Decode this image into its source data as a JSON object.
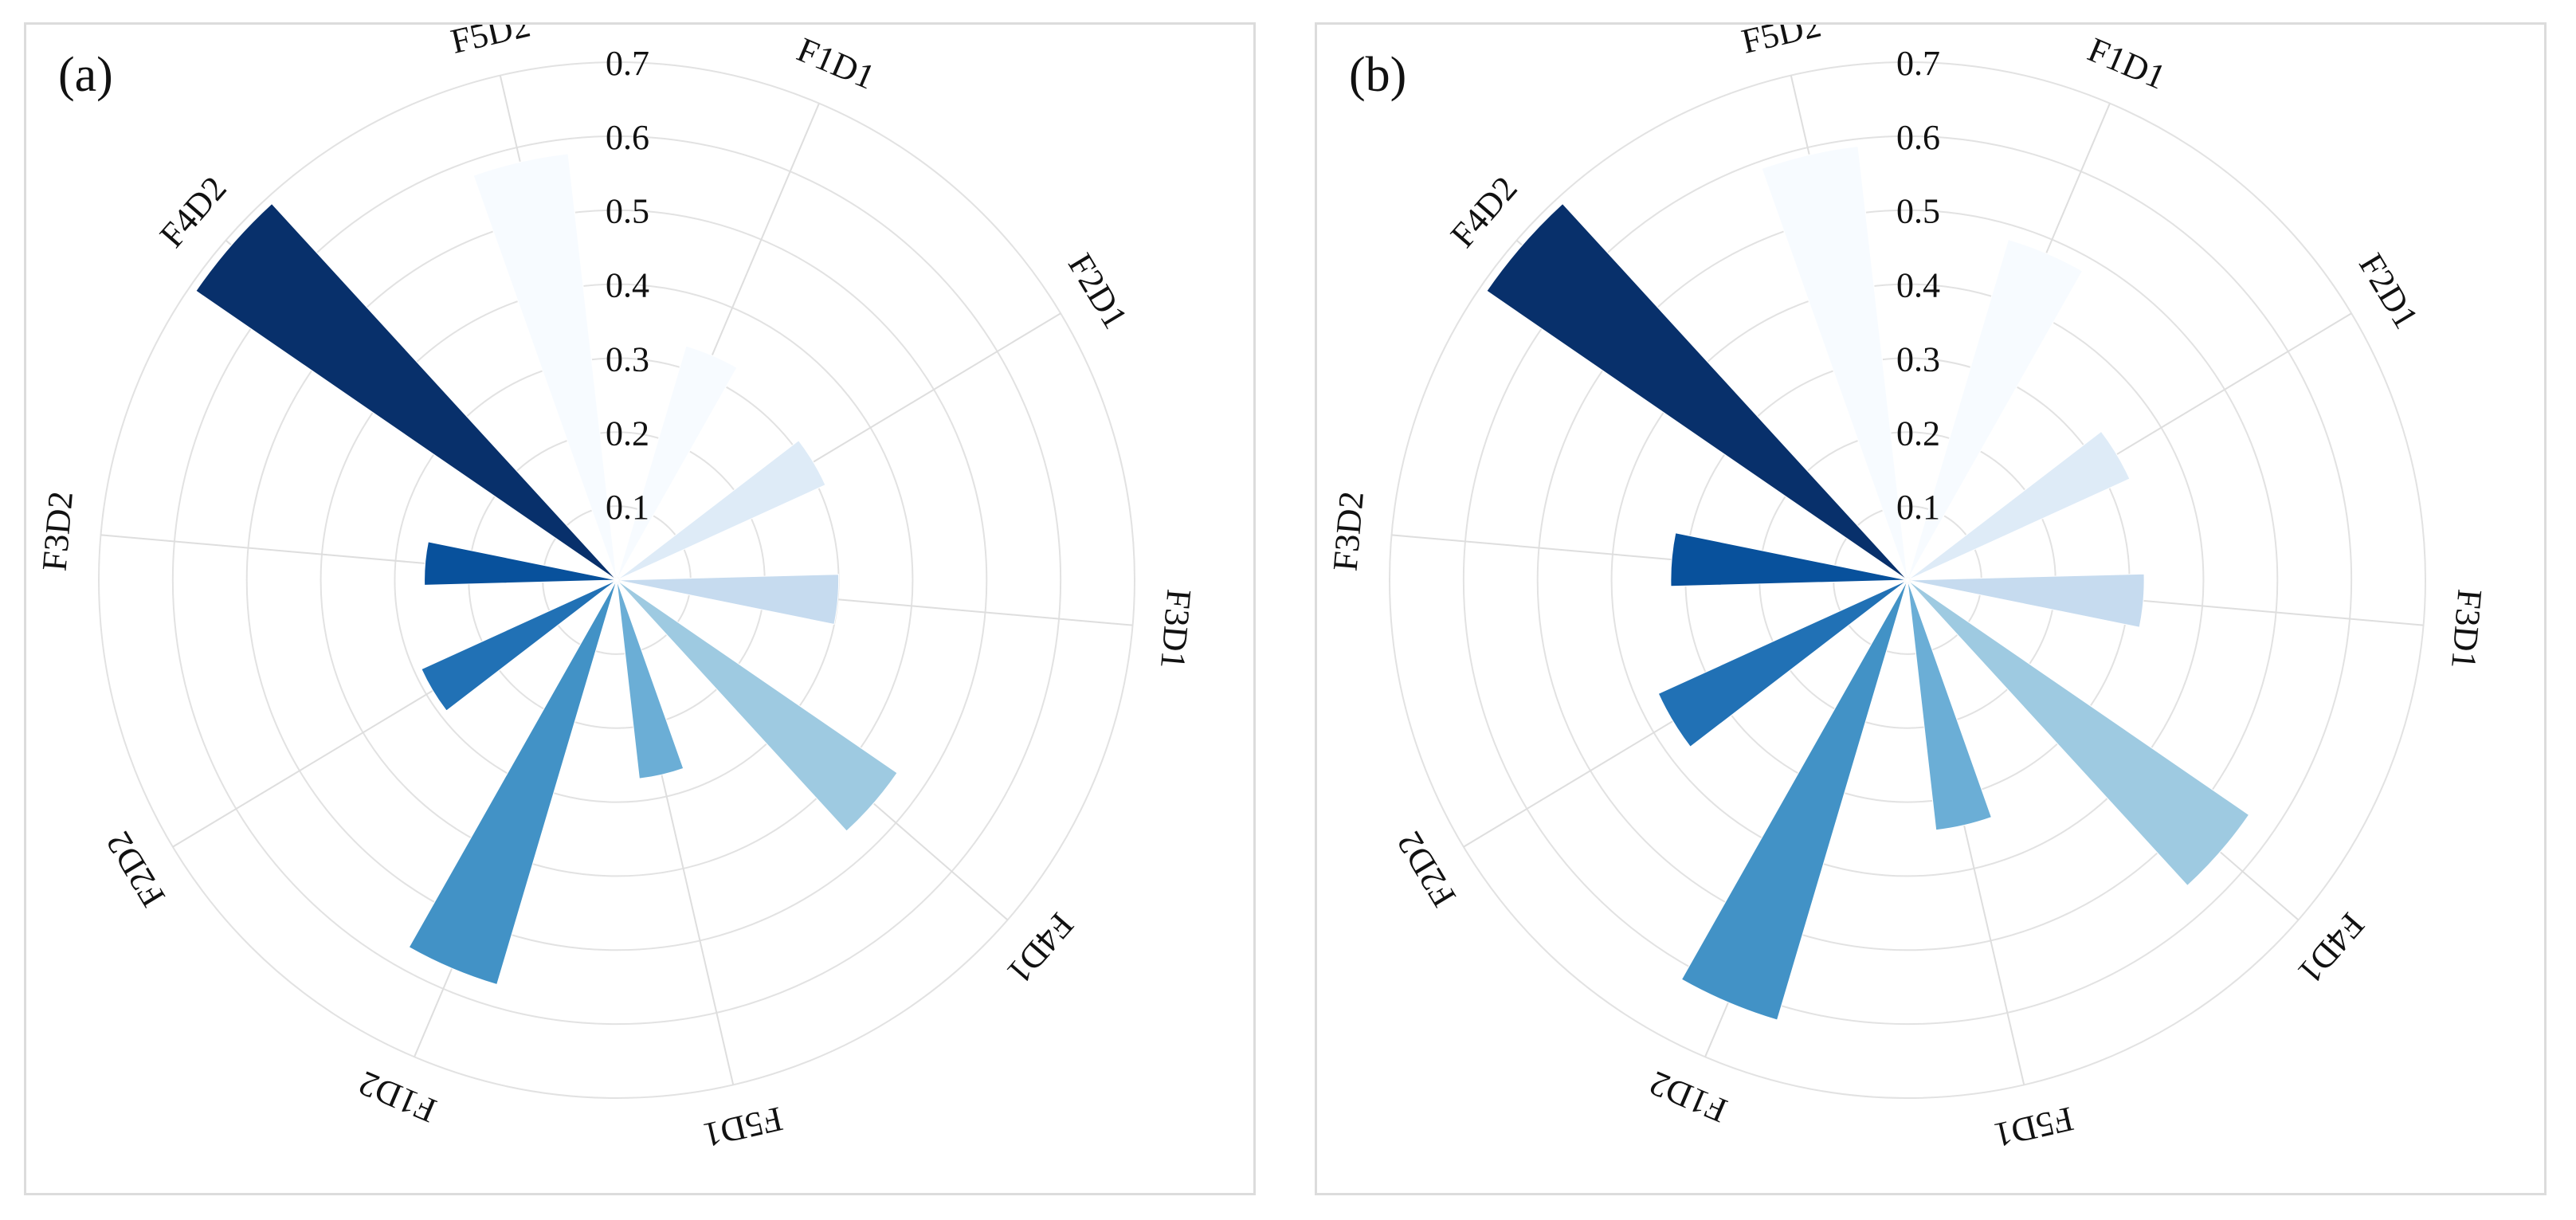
{
  "chart_data": [
    {
      "type": "polar-bar",
      "panel_label": "(a)",
      "categories": [
        "F1D1",
        "F2D1",
        "F3D1",
        "F4D1",
        "F5D1",
        "F1D2",
        "F2D2",
        "F3D2",
        "F4D2",
        "F5D2"
      ],
      "values": [
        0.33,
        0.31,
        0.3,
        0.46,
        0.27,
        0.57,
        0.29,
        0.26,
        0.69,
        0.58
      ],
      "colors": [
        "#f7fbff",
        "#deebf7",
        "#c6dbef",
        "#9ecae1",
        "#6baed6",
        "#4292c6",
        "#2171b5",
        "#08519c",
        "#08306b",
        "#f7fbff"
      ],
      "ticks": [
        0.1,
        0.2,
        0.3,
        0.4,
        0.5,
        0.6,
        0.7
      ],
      "tick_labels": [
        "0.1",
        "0.2",
        "0.3",
        "0.4",
        "0.5",
        "0.6",
        "0.7"
      ],
      "rlim": [
        0,
        0.7
      ],
      "title": "",
      "xlabel": "",
      "ylabel": ""
    },
    {
      "type": "polar-bar",
      "panel_label": "(b)",
      "categories": [
        "F1D1",
        "F2D1",
        "F3D1",
        "F4D1",
        "F5D1",
        "F1D2",
        "F2D2",
        "F3D2",
        "F4D2",
        "F5D2"
      ],
      "values": [
        0.48,
        0.33,
        0.32,
        0.56,
        0.34,
        0.62,
        0.37,
        0.32,
        0.69,
        0.59
      ],
      "colors": [
        "#f7fbff",
        "#deebf7",
        "#c6dbef",
        "#9ecae1",
        "#6baed6",
        "#4292c6",
        "#2171b5",
        "#08519c",
        "#08306b",
        "#f7fbff"
      ],
      "ticks": [
        0.1,
        0.2,
        0.3,
        0.4,
        0.5,
        0.6,
        0.7
      ],
      "tick_labels": [
        "0.1",
        "0.2",
        "0.3",
        "0.4",
        "0.5",
        "0.6",
        "0.7"
      ],
      "rlim": [
        0,
        0.7
      ],
      "title": "",
      "xlabel": "",
      "ylabel": ""
    }
  ]
}
